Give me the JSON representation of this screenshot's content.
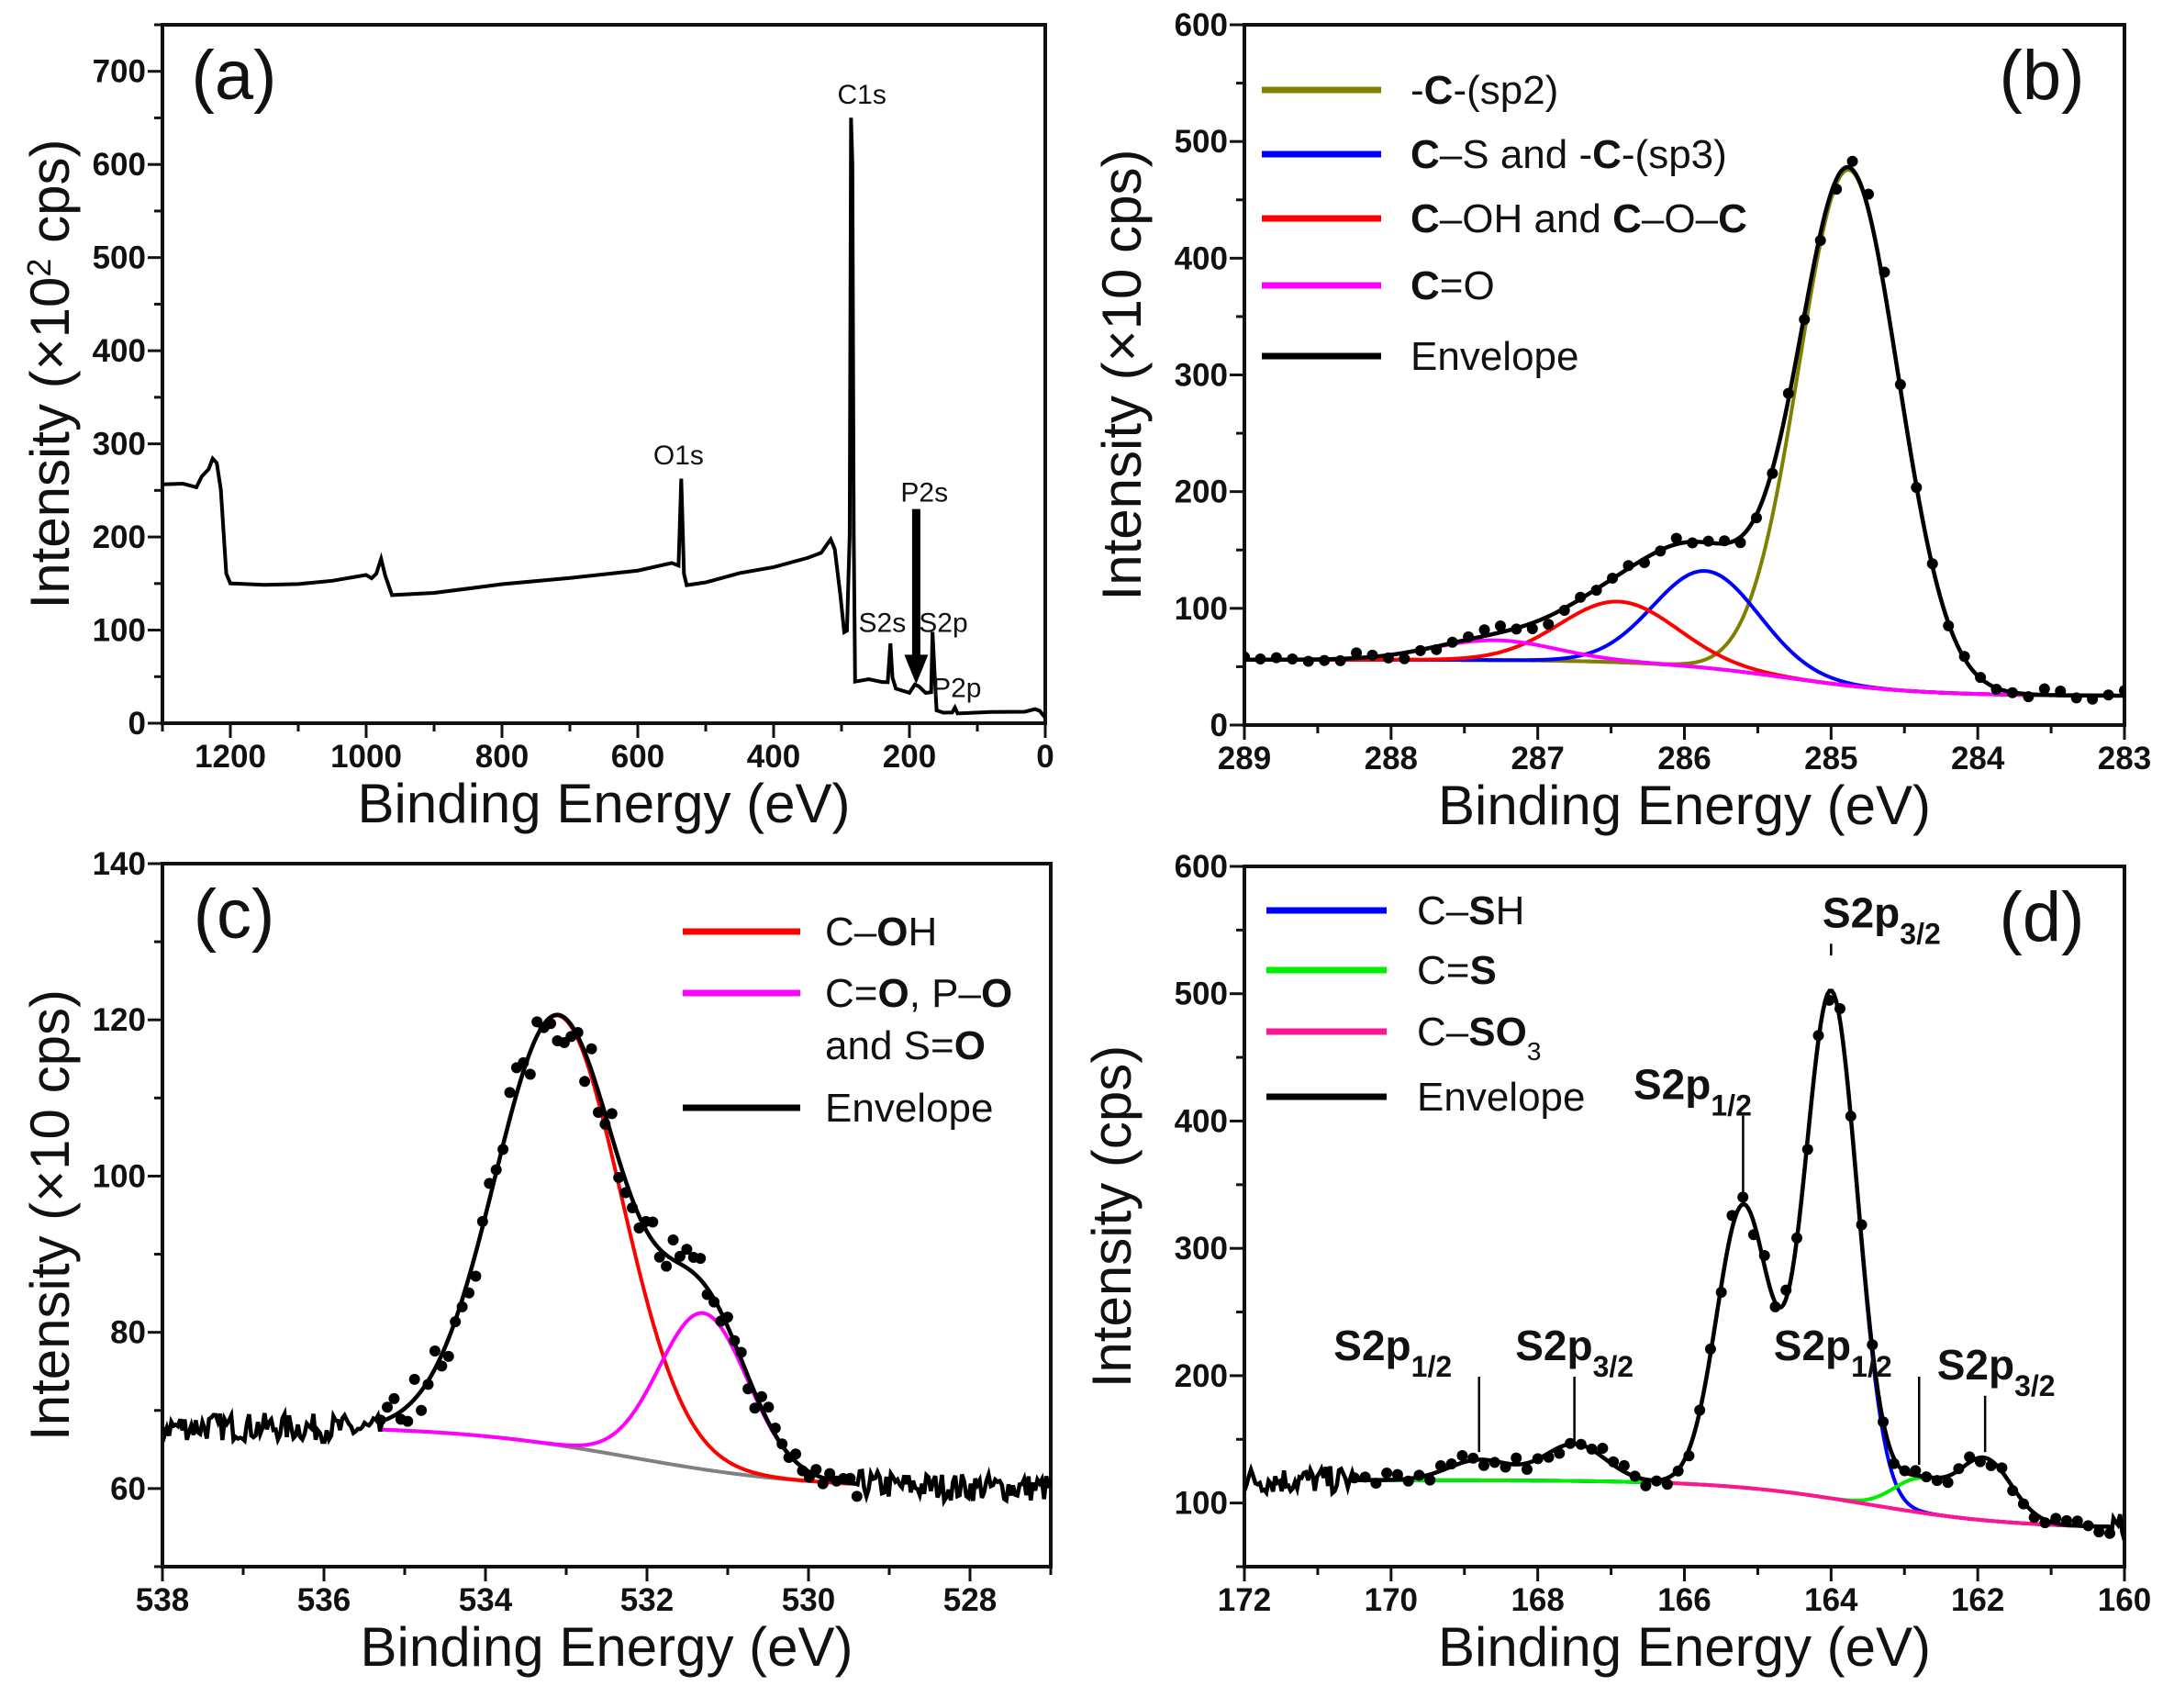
{
  "chart_data": [
    {
      "panel": "(a)",
      "type": "line",
      "xlabel": "Binding Energy (eV)",
      "ylabel": "Intensity (×10",
      "ylabel_sup": "2",
      "ylabel_end": " cps)",
      "xlim": [
        1300,
        0
      ],
      "ylim": [
        0,
        750
      ],
      "xticks": [
        1200,
        1000,
        800,
        600,
        400,
        200,
        0
      ],
      "xminor": 100,
      "yticks": [
        0,
        100,
        200,
        300,
        400,
        500,
        600,
        700
      ],
      "yminor": 50,
      "survey": [
        [
          1300,
          258
        ],
        [
          1270,
          256
        ],
        [
          1250,
          254
        ],
        [
          1242,
          266
        ],
        [
          1232,
          272
        ],
        [
          1226,
          284
        ],
        [
          1220,
          280
        ],
        [
          1214,
          250
        ],
        [
          1206,
          160
        ],
        [
          1200,
          150
        ],
        [
          1150,
          148
        ],
        [
          1100,
          149
        ],
        [
          1050,
          152
        ],
        [
          1000,
          160
        ],
        [
          992,
          156
        ],
        [
          985,
          160
        ],
        [
          978,
          176
        ],
        [
          972,
          160
        ],
        [
          962,
          137
        ],
        [
          900,
          140
        ],
        [
          800,
          148
        ],
        [
          700,
          155
        ],
        [
          600,
          165
        ],
        [
          550,
          172
        ],
        [
          540,
          168
        ],
        [
          536,
          262
        ],
        [
          532,
          160
        ],
        [
          528,
          148
        ],
        [
          500,
          150
        ],
        [
          450,
          160
        ],
        [
          400,
          168
        ],
        [
          350,
          178
        ],
        [
          330,
          182
        ],
        [
          316,
          198
        ],
        [
          310,
          188
        ],
        [
          302,
          140
        ],
        [
          296,
          98
        ],
        [
          292,
          100
        ],
        [
          288,
          200
        ],
        [
          286,
          650
        ],
        [
          284,
          600
        ],
        [
          282,
          200
        ],
        [
          280,
          46
        ],
        [
          260,
          48
        ],
        [
          240,
          44
        ],
        [
          232,
          44
        ],
        [
          228,
          86
        ],
        [
          225,
          50
        ],
        [
          220,
          36
        ],
        [
          200,
          34
        ],
        [
          192,
          42
        ],
        [
          186,
          40
        ],
        [
          176,
          32
        ],
        [
          168,
          32
        ],
        [
          166,
          98
        ],
        [
          163,
          55
        ],
        [
          160,
          14
        ],
        [
          150,
          12
        ],
        [
          137,
          12
        ],
        [
          133,
          17
        ],
        [
          129,
          11
        ],
        [
          80,
          12
        ],
        [
          30,
          12
        ],
        [
          15,
          16
        ],
        [
          8,
          12
        ],
        [
          0,
          6
        ]
      ],
      "arrow": {
        "x": 190,
        "from": 230,
        "to": 42
      },
      "annotations": [
        {
          "text": "C1s",
          "x": 270,
          "y": 665,
          "color": "#111111"
        },
        {
          "text": "O1s",
          "x": 540,
          "y": 278,
          "color": "#111111"
        },
        {
          "text": "P2s",
          "x": 178,
          "y": 238,
          "color": "#111111"
        },
        {
          "text": "S2s",
          "x": 240,
          "y": 98,
          "color": "#111111"
        },
        {
          "text": "S2p",
          "x": 150,
          "y": 98,
          "color": "#111111"
        },
        {
          "text": "P2p",
          "x": 130,
          "y": 28,
          "color": "#0000ff"
        }
      ]
    },
    {
      "panel": "(b)",
      "type": "line",
      "xlabel": "Binding Energy (eV)",
      "ylabel": "Intensity (×10 cps)",
      "xlim": [
        289,
        283
      ],
      "ylim": [
        0,
        600
      ],
      "xticks": [
        289,
        288,
        287,
        286,
        285,
        284,
        283
      ],
      "xminor": 0.5,
      "yticks": [
        0,
        100,
        200,
        300,
        400,
        500,
        600
      ],
      "yminor": 50,
      "baseline": {
        "left": 56,
        "right": 25,
        "center": 285.3,
        "width": 0.45
      },
      "components": [
        {
          "name": [
            [
              "-",
              0
            ],
            [
              "C",
              1
            ],
            [
              "-(sp2)",
              0
            ]
          ],
          "color": "#808000",
          "center": 284.88,
          "amp": 442,
          "sigma": 0.34
        },
        {
          "name": [
            [
              "C",
              1
            ],
            [
              "–S and -",
              0
            ],
            [
              "C",
              1
            ],
            [
              "-(sp3)",
              0
            ]
          ],
          "color": "#0000ff",
          "center": 285.85,
          "amp": 83,
          "sigma": 0.36
        },
        {
          "name": [
            [
              "C",
              1
            ],
            [
              "–OH and ",
              0
            ],
            [
              "C",
              1
            ],
            [
              "–O–",
              0
            ],
            [
              "C",
              1
            ]
          ],
          "color": "#ff0000",
          "center": 286.45,
          "amp": 52,
          "sigma": 0.4
        },
        {
          "name": [
            [
              "C",
              1
            ],
            [
              "=O",
              0
            ]
          ],
          "color": "#ff00ff",
          "center": 287.3,
          "amp": 17,
          "sigma": 0.42
        }
      ],
      "envelope": {
        "name": "Envelope",
        "color": "#000000"
      },
      "background_color": "#808080"
    },
    {
      "panel": "(c)",
      "type": "line",
      "xlabel": "Binding Energy (eV)",
      "ylabel": "Intensity (×10 cps)",
      "xlim": [
        538,
        527
      ],
      "ylim": [
        50,
        140
      ],
      "xticks": [
        538,
        536,
        534,
        532,
        530,
        528
      ],
      "xminor": 1,
      "yticks": [
        60,
        80,
        100,
        120,
        140
      ],
      "yminor": 10,
      "fit_range": [
        535.3,
        529.4
      ],
      "baseline": {
        "left": 68,
        "right": 60,
        "center": 532.2,
        "width": 1.1
      },
      "components": [
        {
          "name": [
            [
              "C–",
              0
            ],
            [
              "O",
              1
            ],
            [
              "H",
              0
            ]
          ],
          "color": "#ff0000",
          "center": 533.1,
          "amp": 55,
          "sigma": 0.78
        },
        {
          "name": [
            [
              "C=",
              0
            ],
            [
              "O",
              1
            ],
            [
              ", P–",
              0
            ],
            [
              "O",
              1
            ]
          ],
          "name2": [
            [
              "and S=",
              0
            ],
            [
              "O",
              1
            ]
          ],
          "color": "#ff00ff",
          "center": 531.3,
          "amp": 20,
          "sigma": 0.55
        }
      ],
      "envelope": {
        "name": "Envelope",
        "color": "#000000"
      },
      "background_color": "#808080"
    },
    {
      "panel": "(d)",
      "type": "line",
      "xlabel": "Binding Energy (eV)",
      "ylabel": "Intensity (cps)",
      "xlim": [
        172,
        160
      ],
      "ylim": [
        50,
        600
      ],
      "xticks": [
        172,
        170,
        168,
        166,
        164,
        162,
        160
      ],
      "xminor": 1,
      "yticks": [
        100,
        200,
        300,
        400,
        500,
        600
      ],
      "yminor": 50,
      "fit_range": [
        170.5,
        160.2
      ],
      "baseline": {
        "left": 118,
        "right": 80,
        "center": 163.5,
        "width": 1.0
      },
      "components": [
        {
          "name": [
            [
              "C–",
              0
            ],
            [
              "S",
              1
            ],
            [
              "H",
              0
            ]
          ],
          "color": "#0000ff",
          "peaks": [
            [
              164.0,
              398,
              0.36
            ],
            [
              165.2,
              221,
              0.36
            ]
          ]
        },
        {
          "name": [
            [
              "C=",
              0
            ],
            [
              "S",
              1
            ]
          ],
          "color": "#00ee00",
          "peaks": [
            [
              162.8,
              25,
              0.36
            ],
            [
              161.9,
              48,
              0.36
            ]
          ]
        },
        {
          "name": [
            [
              "C–",
              0
            ],
            [
              "SO",
              1
            ],
            [
              "3",
              2
            ]
          ],
          "color": "#ff1493",
          "peaks": [
            [
              168.8,
              16,
              0.42
            ],
            [
              167.5,
              29,
              0.42
            ]
          ]
        }
      ],
      "envelope": {
        "name": "Envelope",
        "color": "#000000"
      },
      "background_color": "#808080",
      "annotations": [
        {
          "main": "S2p",
          "sub": "1/2",
          "x": 168.8,
          "y": 140,
          "label_y": 205
        },
        {
          "main": "S2p",
          "sub": "3/2",
          "x": 167.5,
          "y": 148,
          "label_y": 205
        },
        {
          "main": "S2p",
          "sub": "1/2",
          "x": 165.2,
          "y": 340,
          "label_y": 410
        },
        {
          "main": "S2p",
          "sub": "3/2",
          "x": 164.0,
          "y": 530,
          "label_y": 545
        },
        {
          "main": "S2p",
          "sub": "1/2",
          "x": 162.8,
          "y": 130,
          "label_y": 205
        },
        {
          "main": "S2p",
          "sub": "3/2",
          "x": 161.9,
          "y": 140,
          "label_y": 190
        }
      ]
    }
  ]
}
